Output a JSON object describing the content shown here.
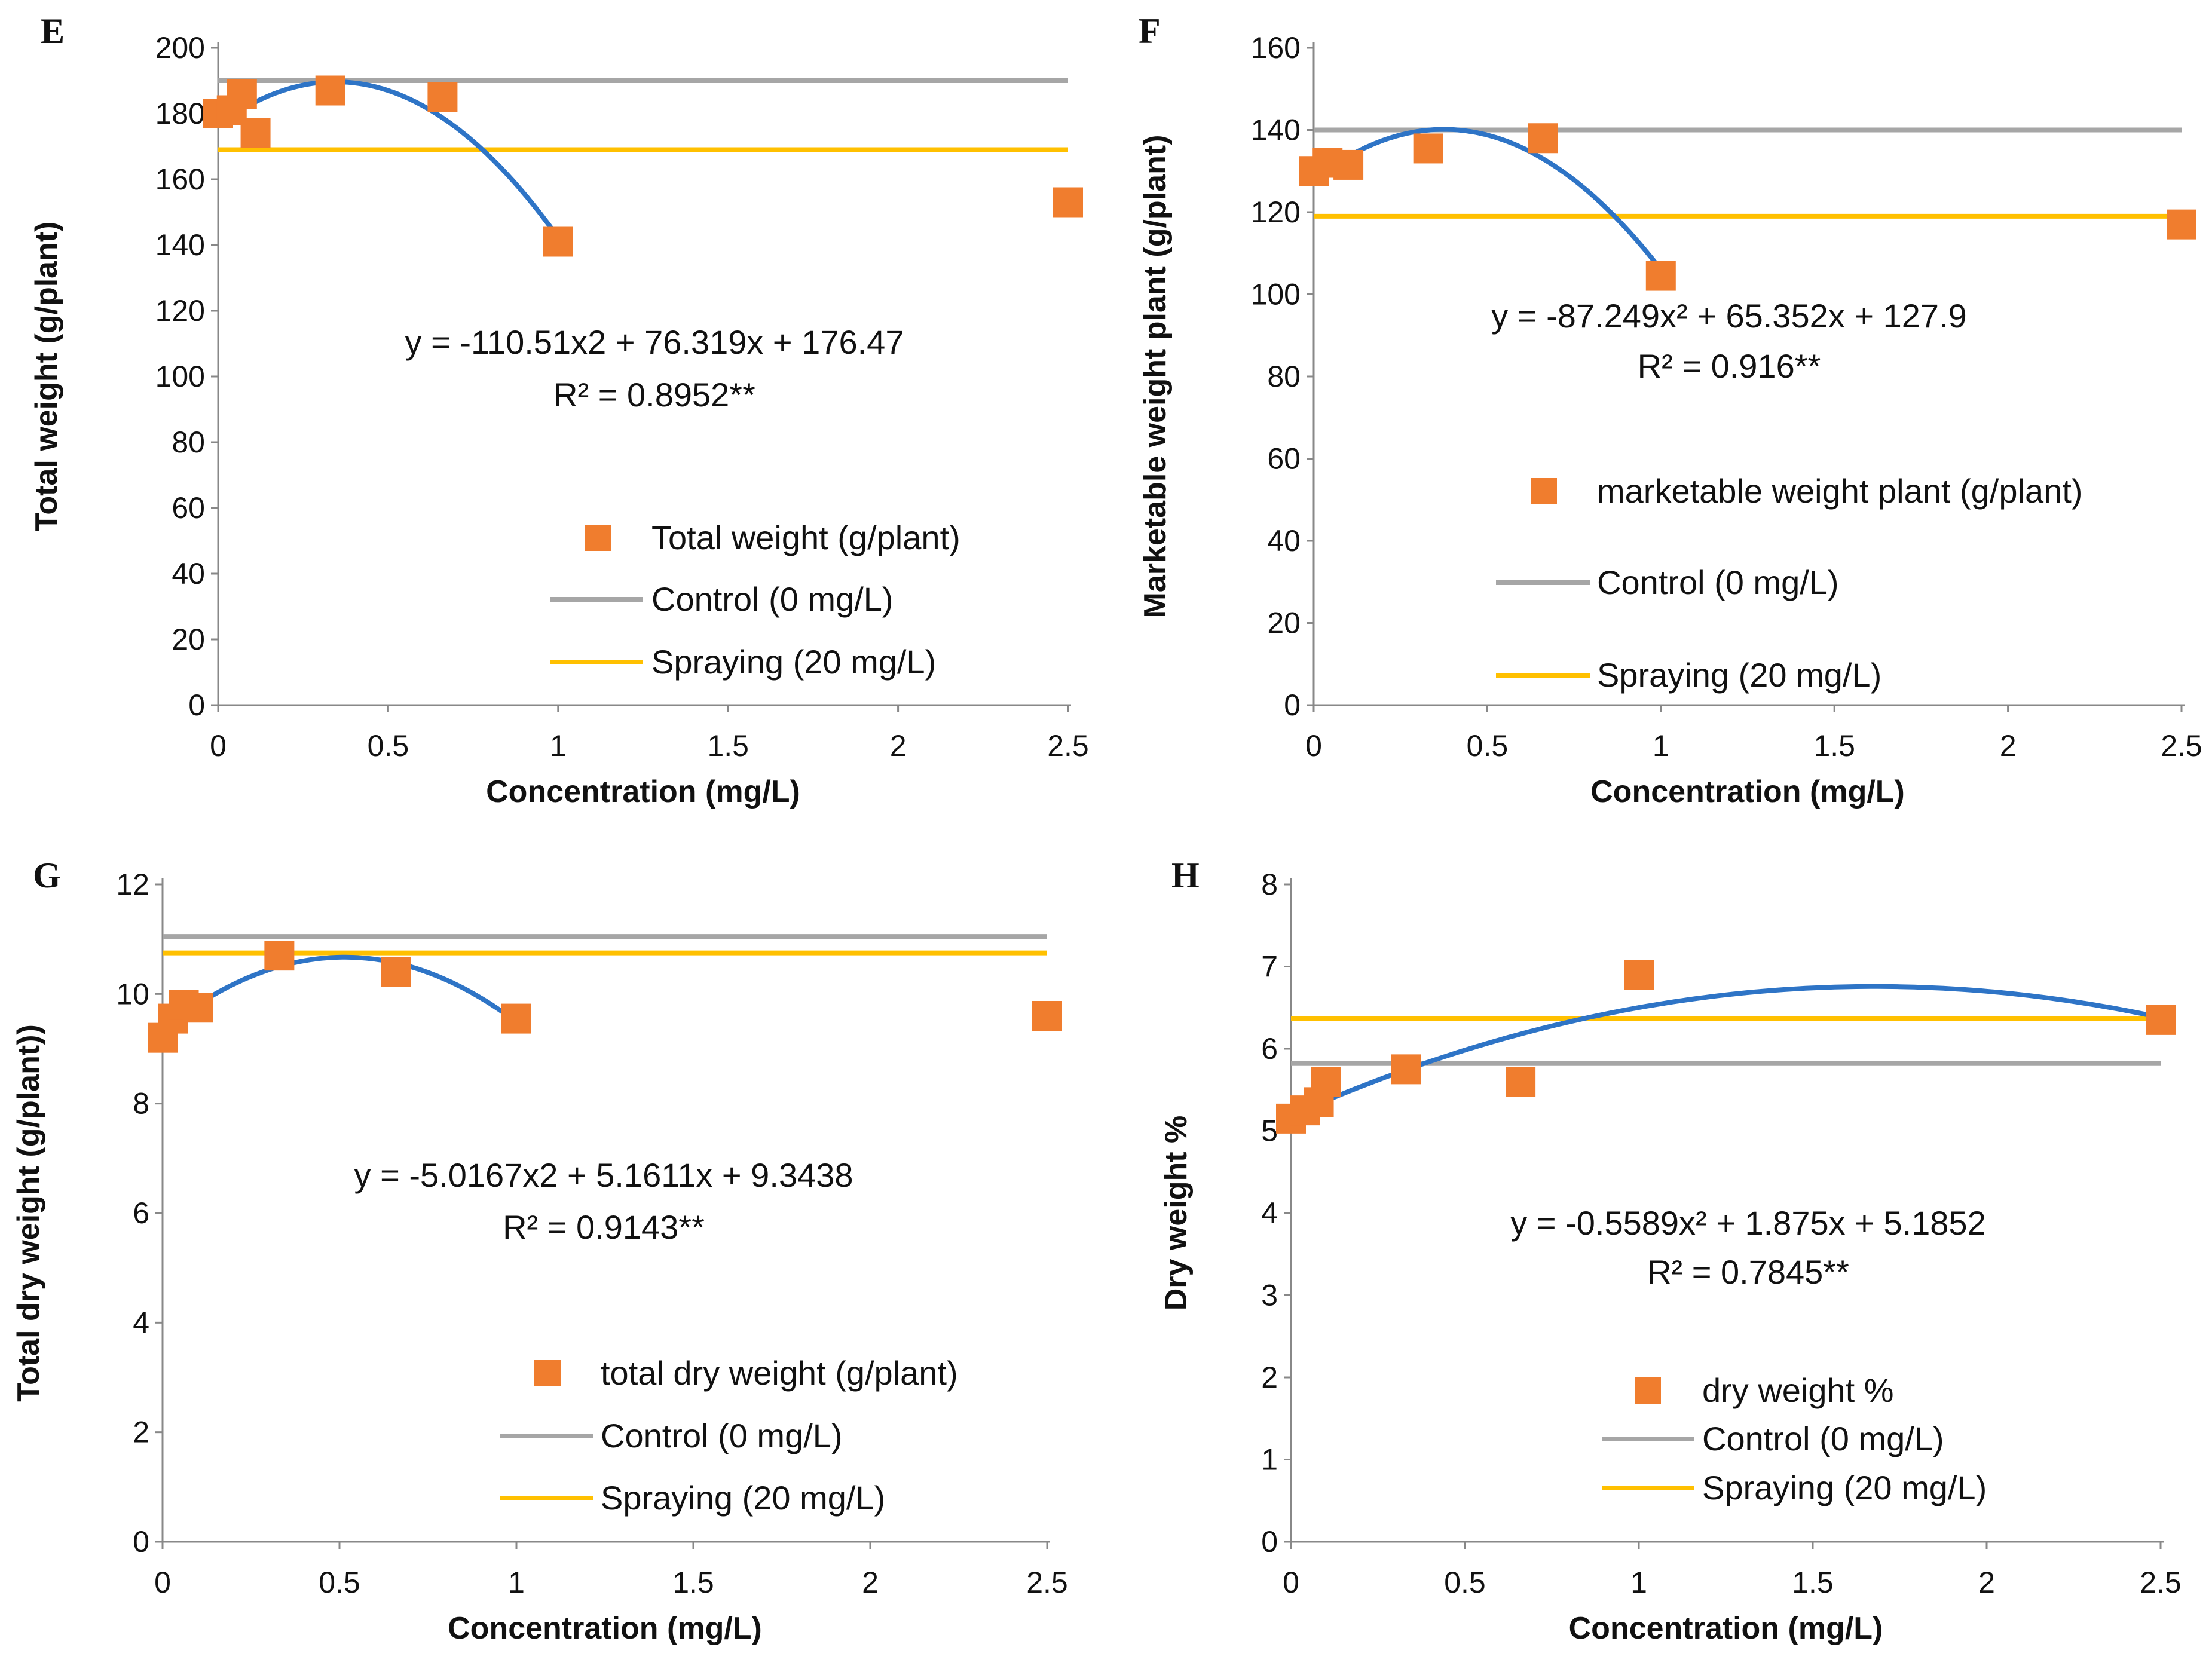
{
  "figure": {
    "panels": [
      "E",
      "F",
      "G",
      "H"
    ]
  },
  "colors": {
    "marker": "#F07D2E",
    "fit": "#2E74C6",
    "control": "#A6A6A6",
    "spraying": "#FFC000",
    "axis": "#888888",
    "text": "#111111"
  },
  "chart_data": [
    {
      "panel": "E",
      "type": "scatter",
      "xlabel": "Concentration (mg/L)",
      "ylabel": "Total weight (g/plant)",
      "xlim": [
        0,
        2.5
      ],
      "ylim": [
        0,
        200
      ],
      "xticks": [
        0,
        0.5,
        1,
        1.5,
        2,
        2.5
      ],
      "xtick_labels": [
        "0",
        "0.5",
        "1",
        "1.5",
        "2",
        "2.5"
      ],
      "yticks": [
        0,
        20,
        40,
        60,
        80,
        100,
        120,
        140,
        160,
        180,
        200
      ],
      "ytick_labels": [
        "0",
        "20",
        "40",
        "60",
        "80",
        "100",
        "120",
        "140",
        "160",
        "180",
        "200"
      ],
      "points": [
        {
          "x": 0,
          "y": 180
        },
        {
          "x": 0.04,
          "y": 181
        },
        {
          "x": 0.07,
          "y": 186
        },
        {
          "x": 0.11,
          "y": 174
        },
        {
          "x": 0.33,
          "y": 187
        },
        {
          "x": 0.66,
          "y": 185
        },
        {
          "x": 1,
          "y": 141
        },
        {
          "x": 2.5,
          "y": 153
        }
      ],
      "fit": {
        "a": -110.51,
        "b": 76.319,
        "c": 176.47,
        "x_range": [
          0,
          1
        ]
      },
      "control_value": 190,
      "spraying_value": 169,
      "equation": "y = -110.51x2 + 76.319x + 176.47",
      "r2": "R² = 0.8952**",
      "legend": {
        "marker_label": "Total weight (g/plant)",
        "control_label": "Control (0 mg/L)",
        "spraying_label": "Spraying (20 mg/L)"
      }
    },
    {
      "panel": "F",
      "type": "scatter",
      "xlabel": "Concentration (mg/L)",
      "ylabel": "Marketable weight plant (g/plant)",
      "xlim": [
        0,
        2.5
      ],
      "ylim": [
        0,
        160
      ],
      "xticks": [
        0,
        0.5,
        1,
        1.5,
        2,
        2.5
      ],
      "xtick_labels": [
        "0",
        "0.5",
        "1",
        "1.5",
        "2",
        "2.5"
      ],
      "yticks": [
        0,
        20,
        40,
        60,
        80,
        100,
        120,
        140,
        160
      ],
      "ytick_labels": [
        "0",
        "20",
        "40",
        "60",
        "80",
        "100",
        "120",
        "140",
        "160"
      ],
      "points": [
        {
          "x": 0,
          "y": 130
        },
        {
          "x": 0.04,
          "y": 132
        },
        {
          "x": 0.1,
          "y": 131.5
        },
        {
          "x": 0.33,
          "y": 135.5
        },
        {
          "x": 0.66,
          "y": 138
        },
        {
          "x": 1,
          "y": 104.5
        },
        {
          "x": 2.5,
          "y": 117
        }
      ],
      "fit": {
        "a": -87.249,
        "b": 65.352,
        "c": 127.9,
        "x_range": [
          0,
          1
        ]
      },
      "control_value": 140,
      "spraying_value": 119,
      "equation": "y = -87.249x² + 65.352x + 127.9",
      "r2": "R² = 0.916**",
      "legend": {
        "marker_label": "marketable weight plant (g/plant)",
        "control_label": "Control (0 mg/L)",
        "spraying_label": "Spraying (20 mg/L)"
      }
    },
    {
      "panel": "G",
      "type": "scatter",
      "xlabel": "Concentration (mg/L)",
      "ylabel": "Total dry weight (g/plant))",
      "xlim": [
        0,
        2.5
      ],
      "ylim": [
        0,
        12
      ],
      "xticks": [
        0,
        0.5,
        1,
        1.5,
        2,
        2.5
      ],
      "xtick_labels": [
        "0",
        "0.5",
        "1",
        "1.5",
        "2",
        "2.5"
      ],
      "yticks": [
        0,
        2,
        4,
        6,
        8,
        10,
        12
      ],
      "ytick_labels": [
        "0",
        "2",
        "4",
        "6",
        "8",
        "10",
        "12"
      ],
      "points": [
        {
          "x": 0,
          "y": 9.2
        },
        {
          "x": 0.03,
          "y": 9.55
        },
        {
          "x": 0.06,
          "y": 9.8
        },
        {
          "x": 0.1,
          "y": 9.75
        },
        {
          "x": 0.33,
          "y": 10.7
        },
        {
          "x": 0.66,
          "y": 10.4
        },
        {
          "x": 1,
          "y": 9.55
        },
        {
          "x": 2.5,
          "y": 9.6
        }
      ],
      "fit": {
        "a": -5.0167,
        "b": 5.1611,
        "c": 9.3438,
        "x_range": [
          0,
          1
        ]
      },
      "control_value": 11.05,
      "spraying_value": 10.75,
      "equation": "y = -5.0167x2 + 5.1611x + 9.3438",
      "r2": "R² = 0.9143**",
      "legend": {
        "marker_label": "total dry weight (g/plant)",
        "control_label": "Control (0 mg/L)",
        "spraying_label": "Spraying (20 mg/L)"
      }
    },
    {
      "panel": "H",
      "type": "scatter",
      "xlabel": "Concentration (mg/L)",
      "ylabel": "Dry weight %",
      "xlim": [
        0,
        2.5
      ],
      "ylim": [
        0,
        8
      ],
      "xticks": [
        0,
        0.5,
        1,
        1.5,
        2,
        2.5
      ],
      "xtick_labels": [
        "0",
        "0.5",
        "1",
        "1.5",
        "2",
        "2.5"
      ],
      "yticks": [
        0,
        1,
        2,
        3,
        4,
        5,
        6,
        7,
        8
      ],
      "ytick_labels": [
        "0",
        "1",
        "2",
        "3",
        "4",
        "5",
        "6",
        "7",
        "8"
      ],
      "points": [
        {
          "x": 0,
          "y": 5.15
        },
        {
          "x": 0.04,
          "y": 5.25
        },
        {
          "x": 0.08,
          "y": 5.35
        },
        {
          "x": 0.1,
          "y": 5.6
        },
        {
          "x": 0.33,
          "y": 5.75
        },
        {
          "x": 0.66,
          "y": 5.6
        },
        {
          "x": 1,
          "y": 6.9
        },
        {
          "x": 2.5,
          "y": 6.35
        }
      ],
      "fit": {
        "a": -0.5589,
        "b": 1.875,
        "c": 5.1852,
        "x_range": [
          0,
          2.5
        ]
      },
      "control_value": 5.82,
      "spraying_value": 6.37,
      "equation": "y = -0.5589x² + 1.875x + 5.1852",
      "r2": "R² = 0.7845**",
      "legend": {
        "marker_label": "dry weight %",
        "control_label": "Control (0 mg/L)",
        "spraying_label": "Spraying (20 mg/L)"
      }
    }
  ]
}
